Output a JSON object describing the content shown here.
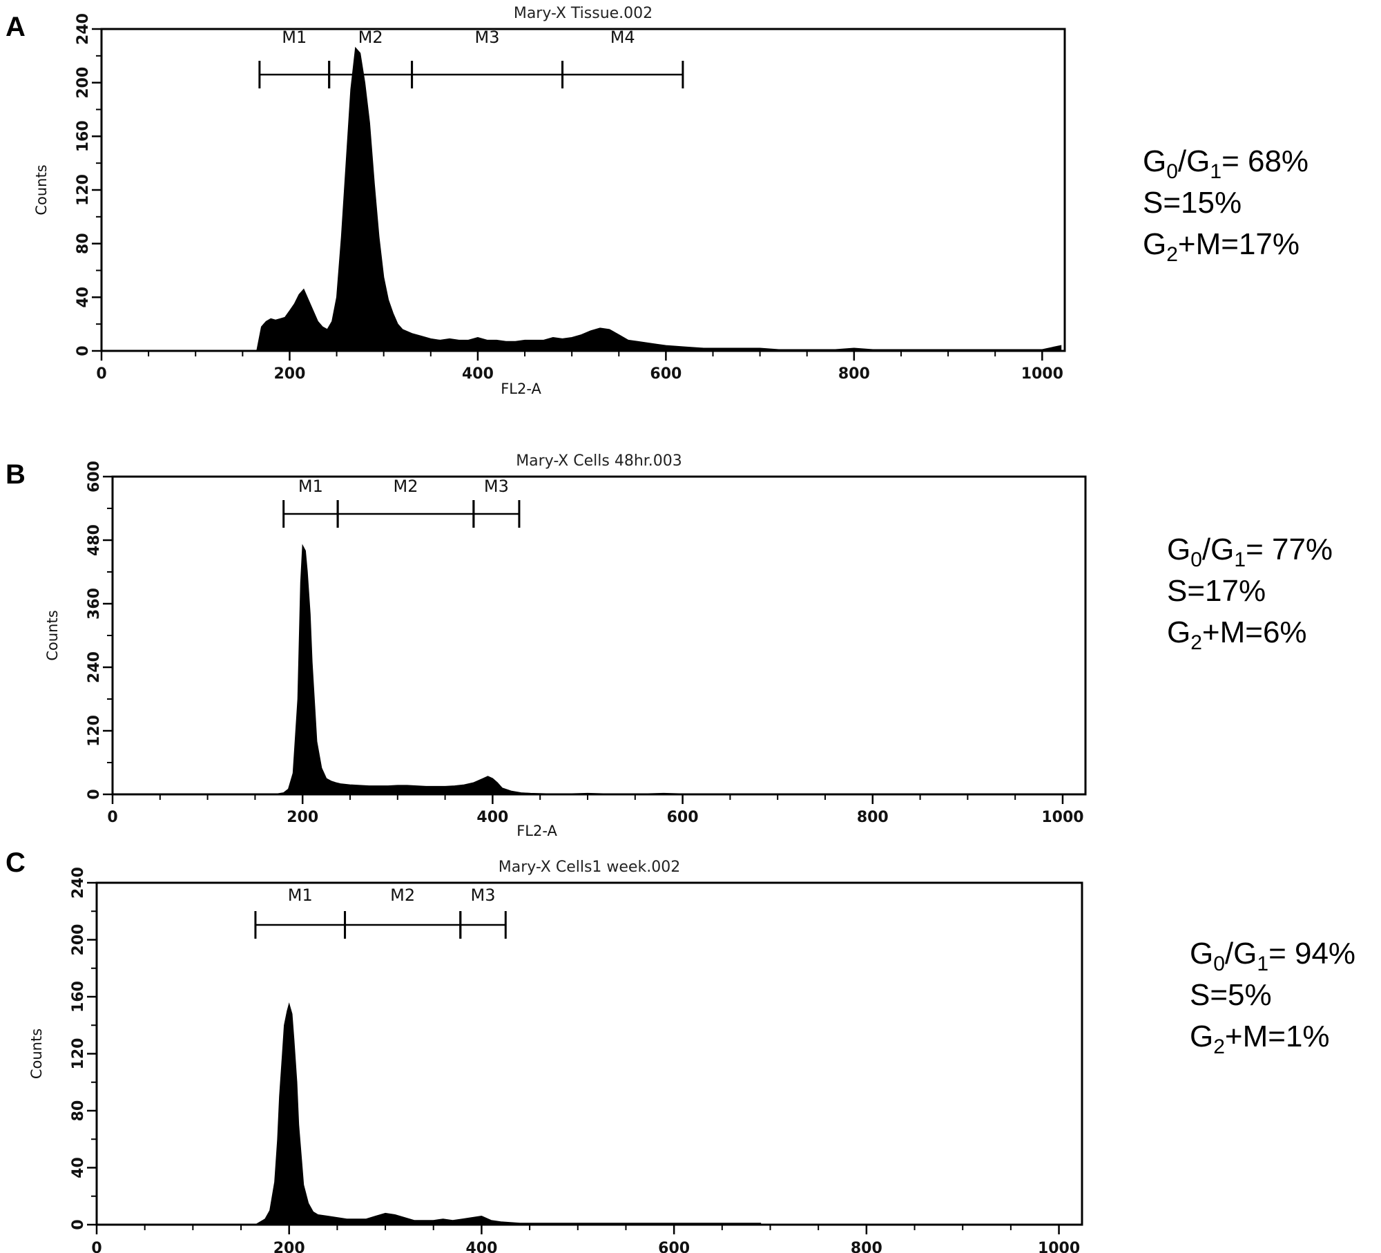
{
  "chart_data": [
    {
      "type": "bar",
      "panel": "A",
      "title": "Mary-X Tissue.002",
      "xlabel": "FL2-A",
      "ylabel": "Counts",
      "xlim": [
        0,
        1024
      ],
      "ylim": [
        0,
        240
      ],
      "xticks": [
        0,
        200,
        400,
        600,
        800,
        1000
      ],
      "yticks": [
        0,
        40,
        80,
        120,
        160,
        200,
        240
      ],
      "markers": [
        {
          "label": "M1",
          "start": 168,
          "end": 242
        },
        {
          "label": "M2",
          "start": 242,
          "end": 330
        },
        {
          "label": "M3",
          "start": 330,
          "end": 490
        },
        {
          "label": "M4",
          "start": 490,
          "end": 618
        }
      ],
      "histogram": {
        "x": [
          165,
          170,
          175,
          180,
          185,
          190,
          195,
          200,
          205,
          210,
          215,
          220,
          225,
          230,
          235,
          240,
          245,
          250,
          255,
          260,
          265,
          270,
          275,
          280,
          285,
          290,
          295,
          300,
          305,
          310,
          315,
          320,
          330,
          340,
          350,
          360,
          370,
          380,
          390,
          400,
          410,
          420,
          430,
          440,
          450,
          460,
          470,
          480,
          490,
          500,
          510,
          520,
          530,
          540,
          550,
          560,
          570,
          580,
          590,
          600,
          620,
          640,
          660,
          680,
          700,
          720,
          740,
          760,
          780,
          800,
          820,
          840,
          860,
          880,
          900,
          920,
          940,
          960,
          980,
          1000,
          1020
        ],
        "y": [
          0,
          18,
          22,
          24,
          23,
          24,
          25,
          30,
          35,
          42,
          46,
          38,
          30,
          22,
          18,
          16,
          22,
          40,
          85,
          140,
          195,
          226,
          222,
          200,
          170,
          125,
          85,
          55,
          38,
          28,
          20,
          16,
          13,
          11,
          9,
          8,
          9,
          8,
          8,
          10,
          8,
          8,
          7,
          7,
          8,
          8,
          8,
          10,
          9,
          10,
          12,
          15,
          17,
          16,
          12,
          8,
          7,
          6,
          5,
          4,
          3,
          2,
          2,
          2,
          2,
          1,
          1,
          1,
          1,
          2,
          1,
          1,
          1,
          1,
          1,
          1,
          1,
          1,
          1,
          1,
          4
        ]
      },
      "annotations": {
        "g0g1": {
          "prefix": "G",
          "sub1": "0",
          "mid": "/G",
          "sub2": "1",
          "suffix": "= 68%"
        },
        "s": "S=15%",
        "g2m": {
          "prefix": "G",
          "sub": "2",
          "suffix": "+M=17%"
        }
      }
    },
    {
      "type": "bar",
      "panel": "B",
      "title": "Mary-X Cells 48hr.003",
      "xlabel": "FL2-A",
      "ylabel": "Counts",
      "xlim": [
        0,
        1024
      ],
      "ylim": [
        0,
        600
      ],
      "xticks": [
        0,
        200,
        400,
        600,
        800,
        1000
      ],
      "yticks": [
        0,
        120,
        240,
        360,
        480,
        600
      ],
      "markers": [
        {
          "label": "M1",
          "start": 180,
          "end": 237
        },
        {
          "label": "M2",
          "start": 237,
          "end": 380
        },
        {
          "label": "M3",
          "start": 380,
          "end": 428
        }
      ],
      "histogram": {
        "x": [
          170,
          180,
          185,
          190,
          195,
          198,
          200,
          203,
          205,
          208,
          210,
          213,
          215,
          220,
          225,
          230,
          235,
          240,
          250,
          260,
          270,
          280,
          290,
          300,
          310,
          320,
          330,
          340,
          350,
          360,
          370,
          380,
          385,
          390,
          395,
          400,
          405,
          410,
          420,
          430,
          440,
          460,
          480,
          500,
          520,
          540,
          560,
          580,
          600,
          620
        ],
        "y": [
          0,
          3,
          10,
          40,
          180,
          400,
          470,
          460,
          420,
          340,
          250,
          160,
          100,
          50,
          30,
          25,
          22,
          20,
          18,
          17,
          16,
          16,
          16,
          17,
          17,
          16,
          15,
          15,
          15,
          16,
          18,
          22,
          26,
          30,
          34,
          30,
          22,
          12,
          6,
          3,
          2,
          1,
          1,
          2,
          1,
          1,
          1,
          2,
          1,
          0
        ]
      },
      "annotations": {
        "g0g1": {
          "prefix": "G",
          "sub1": "0",
          "mid": "/G",
          "sub2": "1",
          "suffix": "= 77%"
        },
        "s": "S=17%",
        "g2m": {
          "prefix": "G",
          "sub": "2",
          "suffix": "+M=6%"
        }
      }
    },
    {
      "type": "bar",
      "panel": "C",
      "title": "Mary-X Cells1 week.002",
      "xlabel": "",
      "ylabel": "Counts",
      "xlim": [
        0,
        1024
      ],
      "ylim": [
        0,
        240
      ],
      "xticks": [
        0,
        200,
        400,
        600,
        800,
        1000
      ],
      "yticks": [
        0,
        40,
        80,
        120,
        160,
        200,
        240
      ],
      "markers": [
        {
          "label": "M1",
          "start": 165,
          "end": 258
        },
        {
          "label": "M2",
          "start": 258,
          "end": 378
        },
        {
          "label": "M3",
          "start": 378,
          "end": 425
        }
      ],
      "histogram": {
        "x": [
          165,
          170,
          175,
          180,
          185,
          188,
          190,
          193,
          195,
          198,
          200,
          203,
          205,
          208,
          210,
          213,
          215,
          220,
          225,
          230,
          240,
          250,
          260,
          270,
          280,
          290,
          300,
          310,
          320,
          330,
          340,
          350,
          360,
          370,
          380,
          390,
          400,
          410,
          420,
          440,
          460,
          480,
          500,
          520,
          540,
          560,
          580,
          600,
          640,
          690
        ],
        "y": [
          0,
          2,
          4,
          10,
          30,
          60,
          90,
          120,
          140,
          150,
          155,
          148,
          130,
          100,
          70,
          45,
          28,
          15,
          9,
          7,
          6,
          5,
          4,
          4,
          4,
          6,
          8,
          7,
          5,
          3,
          3,
          3,
          4,
          3,
          4,
          5,
          6,
          3,
          2,
          1,
          1,
          1,
          1,
          1,
          1,
          1,
          1,
          1,
          1,
          1
        ]
      },
      "annotations": {
        "g0g1": {
          "prefix": "G",
          "sub1": "0",
          "mid": "/G",
          "sub2": "1",
          "suffix": "= 94%"
        },
        "s": "S=5%",
        "g2m": {
          "prefix": "G",
          "sub": "2",
          "suffix": "+M=1%"
        }
      }
    }
  ]
}
